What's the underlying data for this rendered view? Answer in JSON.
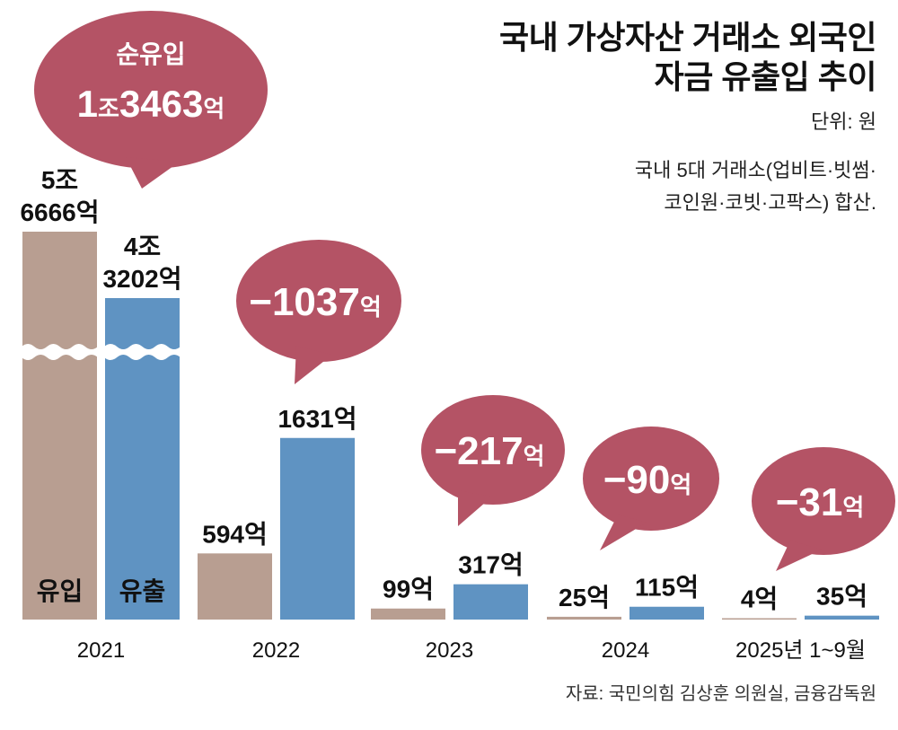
{
  "title": {
    "line1": "국내 가상자산 거래소 외국인",
    "line2": "자금 유출입 추이"
  },
  "unit": "단위: 원",
  "note": {
    "line1": "국내 5대 거래소(업비트·빗썸·",
    "line2": "코인원·코빗·고팍스) 합산."
  },
  "source": "자료: 국민의힘 김상훈 의원실, 금융감독원",
  "colors": {
    "inflow": "#b89e91",
    "outflow": "#5f93c2",
    "bubble": "#b45365",
    "text": "#111111"
  },
  "chart_data": {
    "type": "bar",
    "title": "국내 가상자산 거래소 외국인 자금 유출입 추이",
    "xlabel": "",
    "ylabel": "",
    "unit": "억 원",
    "categories": [
      "2021",
      "2022",
      "2023",
      "2024",
      "2025년 1~9월"
    ],
    "series": [
      {
        "name": "유입",
        "values": [
          56666,
          594,
          99,
          25,
          4
        ],
        "labels": [
          [
            "5조",
            "6666억"
          ],
          [
            "594억"
          ],
          [
            "99억"
          ],
          [
            "25억"
          ],
          [
            "4억"
          ]
        ]
      },
      {
        "name": "유출",
        "values": [
          43202,
          1631,
          317,
          115,
          35
        ],
        "labels": [
          [
            "4조",
            "3202억"
          ],
          [
            "1631억"
          ],
          [
            "317억"
          ],
          [
            "115억"
          ],
          [
            "35억"
          ]
        ]
      }
    ],
    "net": [
      {
        "value": 13463,
        "header": "순유입",
        "num1": "1",
        "unit1": "조",
        "num2": "3463",
        "unit2": "억"
      },
      {
        "value": -1037,
        "num": "−1037",
        "unit": "억"
      },
      {
        "value": -217,
        "num": "−217",
        "unit": "억"
      },
      {
        "value": -90,
        "num": "−90",
        "unit": "억"
      },
      {
        "value": -31,
        "num": "−31",
        "unit": "억"
      }
    ],
    "axis_break": "2021 bars truncated (wavy break)",
    "legend": [
      "유입",
      "유출"
    ],
    "legend_placement": "inside 2021 bars",
    "grid": false
  }
}
